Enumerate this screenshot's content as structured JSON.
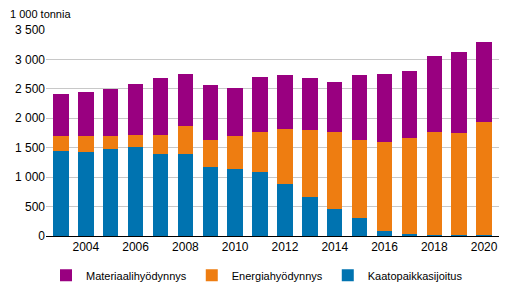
{
  "chart_data": {
    "type": "bar",
    "stacked": true,
    "ylabel": "1 000 tonnia",
    "categories": [
      null,
      "2004",
      null,
      "2006",
      null,
      "2008",
      null,
      "2010",
      null,
      "2012",
      null,
      "2014",
      null,
      "2016",
      null,
      "2018",
      null,
      "2020"
    ],
    "series": [
      {
        "name": "Materiaalihyödynnys",
        "color": "#990080",
        "values": [
          720,
          750,
          800,
          870,
          960,
          890,
          930,
          820,
          940,
          910,
          880,
          850,
          1100,
          1170,
          1130,
          1290,
          1370,
          1360
        ]
      },
      {
        "name": "Energiahyödynnys",
        "color": "#ee7d11",
        "values": [
          260,
          280,
          230,
          210,
          320,
          470,
          450,
          560,
          680,
          930,
          1130,
          1310,
          1330,
          1510,
          1640,
          1740,
          1730,
          1910
        ]
      },
      {
        "name": "Kaatopaikkasijoitus",
        "color": "#0073b0",
        "values": [
          1440,
          1420,
          1470,
          1510,
          1400,
          1400,
          1180,
          1140,
          1090,
          890,
          670,
          460,
          300,
          80,
          30,
          20,
          20,
          20
        ]
      }
    ],
    "ylim": [
      0,
      3500
    ],
    "yticks": [
      0,
      500,
      {
        "value": 1000,
        "label": "1 000"
      },
      {
        "value": 1500,
        "label": "1 500"
      },
      {
        "value": 2000,
        "label": "2 000"
      },
      {
        "value": 2500,
        "label": "2 500"
      },
      {
        "value": 3000,
        "label": "3 000"
      },
      {
        "value": 3500,
        "label": "3 500"
      }
    ],
    "grid": true,
    "legend": "bottom"
  }
}
